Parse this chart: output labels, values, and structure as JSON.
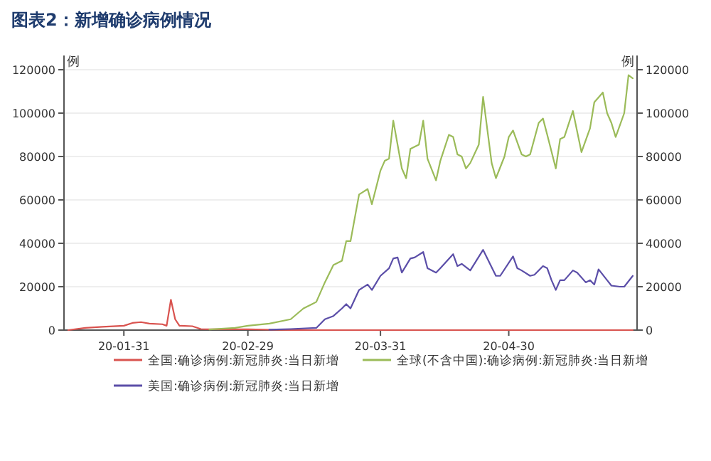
{
  "chart_data": {
    "type": "line",
    "title": "图表2：新增确诊病例情况",
    "ylabel": "例",
    "y2label": "例",
    "xlim": [
      "--01-17",
      "--05-30"
    ],
    "xticks": [
      {
        "value": "--01-31",
        "label": "20-01-31"
      },
      {
        "value": "--02-29",
        "label": "20-02-29"
      },
      {
        "value": "--03-31",
        "label": "20-03-31"
      },
      {
        "value": "--04-30",
        "label": "20-04-30"
      }
    ],
    "ylim": [
      0,
      120000
    ],
    "yticks": [
      0,
      20000,
      40000,
      60000,
      80000,
      100000,
      120000
    ],
    "y2lim": [
      0,
      120000
    ],
    "y2ticks": [
      0,
      20000,
      40000,
      60000,
      80000,
      100000,
      120000
    ],
    "grid": "y",
    "legend": "bottom",
    "marker": "none",
    "line_style": "solid",
    "series": [
      {
        "name": "全国:确诊病例:新冠肺炎:当日新增",
        "color": "#d9534f",
        "x": [
          "--01-18",
          "--01-22",
          "--01-26",
          "--01-31",
          "--02-02",
          "--02-04",
          "--02-06",
          "--02-09",
          "--02-10",
          "--02-11",
          "--02-12",
          "--02-13",
          "--02-16",
          "--02-18",
          "--02-20",
          "--02-29",
          "--03-10",
          "--05-29"
        ],
        "values": [
          0,
          1000,
          1500,
          2000,
          3300,
          3700,
          3000,
          2700,
          2000,
          14000,
          5000,
          2000,
          1800,
          500,
          400,
          400,
          0,
          0
        ]
      },
      {
        "name": "全球(不含中国):确诊病例:新冠肺炎:当日新增",
        "color": "#9bbb59",
        "x": [
          "--02-20",
          "--02-26",
          "--02-29",
          "--03-05",
          "--03-10",
          "--03-13",
          "--03-15",
          "--03-16",
          "--03-18",
          "--03-20",
          "--03-22",
          "--03-23",
          "--03-24",
          "--03-26",
          "--03-28",
          "--03-29",
          "--03-31",
          "--04-01",
          "--04-02",
          "--04-03",
          "--04-05",
          "--04-06",
          "--04-07",
          "--04-09",
          "--04-10",
          "--04-11",
          "--04-13",
          "--04-14",
          "--04-16",
          "--04-17",
          "--04-18",
          "--04-19",
          "--04-20",
          "--04-21",
          "--04-23",
          "--04-24",
          "--04-26",
          "--04-27",
          "--04-29",
          "--04-30",
          "--05-01",
          "--05-03",
          "--05-04",
          "--05-05",
          "--05-07",
          "--05-08",
          "--05-09",
          "--05-11",
          "--05-12",
          "--05-13",
          "--05-15",
          "--05-17",
          "--05-19",
          "--05-20",
          "--05-22",
          "--05-23",
          "--05-24",
          "--05-25",
          "--05-27",
          "--05-28",
          "--05-29"
        ],
        "values": [
          300,
          1000,
          2000,
          3000,
          5000,
          10000,
          12000,
          13000,
          22000,
          30000,
          32000,
          41000,
          41000,
          62500,
          65000,
          58000,
          73500,
          78000,
          79000,
          96500,
          74500,
          70000,
          83500,
          85500,
          96500,
          79000,
          69000,
          78000,
          90000,
          89000,
          81000,
          80000,
          74500,
          77000,
          85500,
          107500,
          77000,
          70000,
          80000,
          89000,
          92000,
          81000,
          80000,
          81000,
          95500,
          97500,
          90000,
          74500,
          88000,
          89000,
          101000,
          82000,
          93000,
          105000,
          109500,
          100000,
          95500,
          89000,
          100000,
          117500,
          116000
        ]
      },
      {
        "name": "美国:确诊病例:新冠肺炎:当日新增",
        "color": "#5b4ea8",
        "x": [
          "--03-05",
          "--03-10",
          "--03-16",
          "--03-18",
          "--03-20",
          "--03-22",
          "--03-23",
          "--03-24",
          "--03-26",
          "--03-28",
          "--03-29",
          "--03-31",
          "--04-02",
          "--04-03",
          "--04-04",
          "--04-05",
          "--04-07",
          "--04-08",
          "--04-10",
          "--04-11",
          "--04-13",
          "--04-14",
          "--04-17",
          "--04-18",
          "--04-19",
          "--04-21",
          "--04-24",
          "--04-27",
          "--04-28",
          "--05-01",
          "--05-02",
          "--05-03",
          "--05-05",
          "--05-06",
          "--05-08",
          "--05-09",
          "--05-10",
          "--05-11",
          "--05-12",
          "--05-13",
          "--05-15",
          "--05-16",
          "--05-18",
          "--05-19",
          "--05-20",
          "--05-21",
          "--05-23",
          "--05-24",
          "--05-26",
          "--05-27",
          "--05-29"
        ],
        "values": [
          200,
          500,
          1000,
          5000,
          6500,
          10000,
          12000,
          10000,
          18500,
          21000,
          18500,
          25000,
          28500,
          33000,
          33500,
          26500,
          33000,
          33500,
          36000,
          28500,
          26500,
          28500,
          35000,
          29500,
          30500,
          27500,
          37000,
          25000,
          25000,
          34000,
          28500,
          27500,
          25000,
          25500,
          29500,
          28500,
          23000,
          18500,
          23000,
          23000,
          27500,
          26500,
          22000,
          23000,
          21000,
          28000,
          23000,
          20500,
          20000,
          20000,
          25000
        ]
      }
    ]
  }
}
